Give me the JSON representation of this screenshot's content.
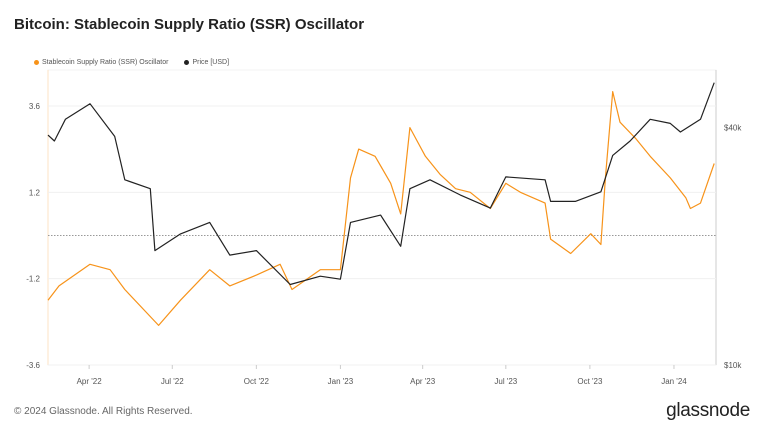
{
  "title": "Bitcoin: Stablecoin Supply Ratio (SSR) Oscillator",
  "footer": "© 2024 Glassnode. All Rights Reserved.",
  "logo": "glassnode",
  "chart_data": {
    "type": "line",
    "title": "Bitcoin: Stablecoin Supply Ratio (SSR) Oscillator",
    "legend_position": "top-left",
    "grid": true,
    "x_ticks": [
      "Apr '22",
      "Jul '22",
      "Oct '22",
      "Jan '23",
      "Apr '23",
      "Jul '23",
      "Oct '23",
      "Jan '24"
    ],
    "x_tick_dates": [
      "2022-04-01",
      "2022-07-01",
      "2022-10-01",
      "2023-01-01",
      "2023-04-01",
      "2023-07-01",
      "2023-10-01",
      "2024-01-01"
    ],
    "xlim": [
      "2022-02-15",
      "2024-02-16"
    ],
    "y_left": {
      "ticks": [
        "3.6",
        "1.2",
        "-1.2",
        "-3.6"
      ],
      "tick_values": [
        3.6,
        1.2,
        -1.2,
        -3.6
      ],
      "ylim": [
        -3.6,
        4.6
      ],
      "zero_line": "dotted"
    },
    "y_right": {
      "scale": "log",
      "ticks": [
        "$40k",
        "$10k"
      ],
      "tick_values": [
        40000,
        10000
      ],
      "ylim": [
        10000,
        56000
      ]
    },
    "series": [
      {
        "name": "Stablecoin Supply Ratio (SSR) Oscillator",
        "axis": "left",
        "color": "#f7931a",
        "points": [
          [
            "2022-02-15",
            -1.8
          ],
          [
            "2022-02-27",
            -1.4
          ],
          [
            "2022-04-02",
            -0.8
          ],
          [
            "2022-04-24",
            -0.95
          ],
          [
            "2022-05-10",
            -1.5
          ],
          [
            "2022-06-16",
            -2.5
          ],
          [
            "2022-07-10",
            -1.8
          ],
          [
            "2022-08-11",
            -0.95
          ],
          [
            "2022-09-02",
            -1.4
          ],
          [
            "2022-10-01",
            -1.1
          ],
          [
            "2022-10-27",
            -0.8
          ],
          [
            "2022-11-09",
            -1.5
          ],
          [
            "2022-12-10",
            -0.95
          ],
          [
            "2023-01-01",
            -0.95
          ],
          [
            "2023-01-12",
            1.6
          ],
          [
            "2023-01-21",
            2.4
          ],
          [
            "2023-02-08",
            2.2
          ],
          [
            "2023-02-25",
            1.45
          ],
          [
            "2023-03-08",
            0.6
          ],
          [
            "2023-03-18",
            3.0
          ],
          [
            "2023-04-04",
            2.2
          ],
          [
            "2023-04-20",
            1.7
          ],
          [
            "2023-05-07",
            1.3
          ],
          [
            "2023-05-23",
            1.2
          ],
          [
            "2023-06-14",
            0.75
          ],
          [
            "2023-07-01",
            1.45
          ],
          [
            "2023-07-17",
            1.2
          ],
          [
            "2023-08-13",
            0.9
          ],
          [
            "2023-08-19",
            -0.1
          ],
          [
            "2023-09-10",
            -0.5
          ],
          [
            "2023-10-02",
            0.05
          ],
          [
            "2023-10-13",
            -0.25
          ],
          [
            "2023-10-18",
            1.6
          ],
          [
            "2023-10-26",
            4.0
          ],
          [
            "2023-11-03",
            3.15
          ],
          [
            "2023-11-20",
            2.7
          ],
          [
            "2023-12-06",
            2.2
          ],
          [
            "2023-12-28",
            1.6
          ],
          [
            "2024-01-14",
            1.05
          ],
          [
            "2024-01-19",
            0.75
          ],
          [
            "2024-01-30",
            0.9
          ],
          [
            "2024-02-14",
            2.0
          ]
        ]
      },
      {
        "name": "Price [USD]",
        "axis": "right",
        "color": "#222222",
        "points": [
          [
            "2022-02-15",
            38300
          ],
          [
            "2022-02-22",
            37000
          ],
          [
            "2022-03-06",
            42000
          ],
          [
            "2022-04-02",
            46000
          ],
          [
            "2022-04-29",
            38000
          ],
          [
            "2022-05-10",
            29500
          ],
          [
            "2022-06-07",
            28000
          ],
          [
            "2022-06-12",
            19500
          ],
          [
            "2022-07-10",
            21500
          ],
          [
            "2022-08-11",
            23000
          ],
          [
            "2022-09-02",
            19000
          ],
          [
            "2022-10-01",
            19500
          ],
          [
            "2022-11-07",
            16000
          ],
          [
            "2022-12-10",
            16800
          ],
          [
            "2023-01-01",
            16500
          ],
          [
            "2023-01-12",
            23000
          ],
          [
            "2023-02-14",
            24000
          ],
          [
            "2023-03-08",
            20000
          ],
          [
            "2023-03-18",
            28000
          ],
          [
            "2023-04-09",
            29500
          ],
          [
            "2023-05-12",
            27000
          ],
          [
            "2023-06-14",
            25000
          ],
          [
            "2023-07-01",
            30000
          ],
          [
            "2023-08-13",
            29500
          ],
          [
            "2023-08-19",
            26000
          ],
          [
            "2023-09-15",
            26000
          ],
          [
            "2023-10-13",
            27500
          ],
          [
            "2023-10-26",
            34000
          ],
          [
            "2023-11-14",
            37000
          ],
          [
            "2023-12-06",
            42000
          ],
          [
            "2023-12-28",
            41000
          ],
          [
            "2024-01-08",
            39000
          ],
          [
            "2024-01-30",
            42000
          ],
          [
            "2024-02-14",
            52000
          ]
        ]
      }
    ]
  }
}
